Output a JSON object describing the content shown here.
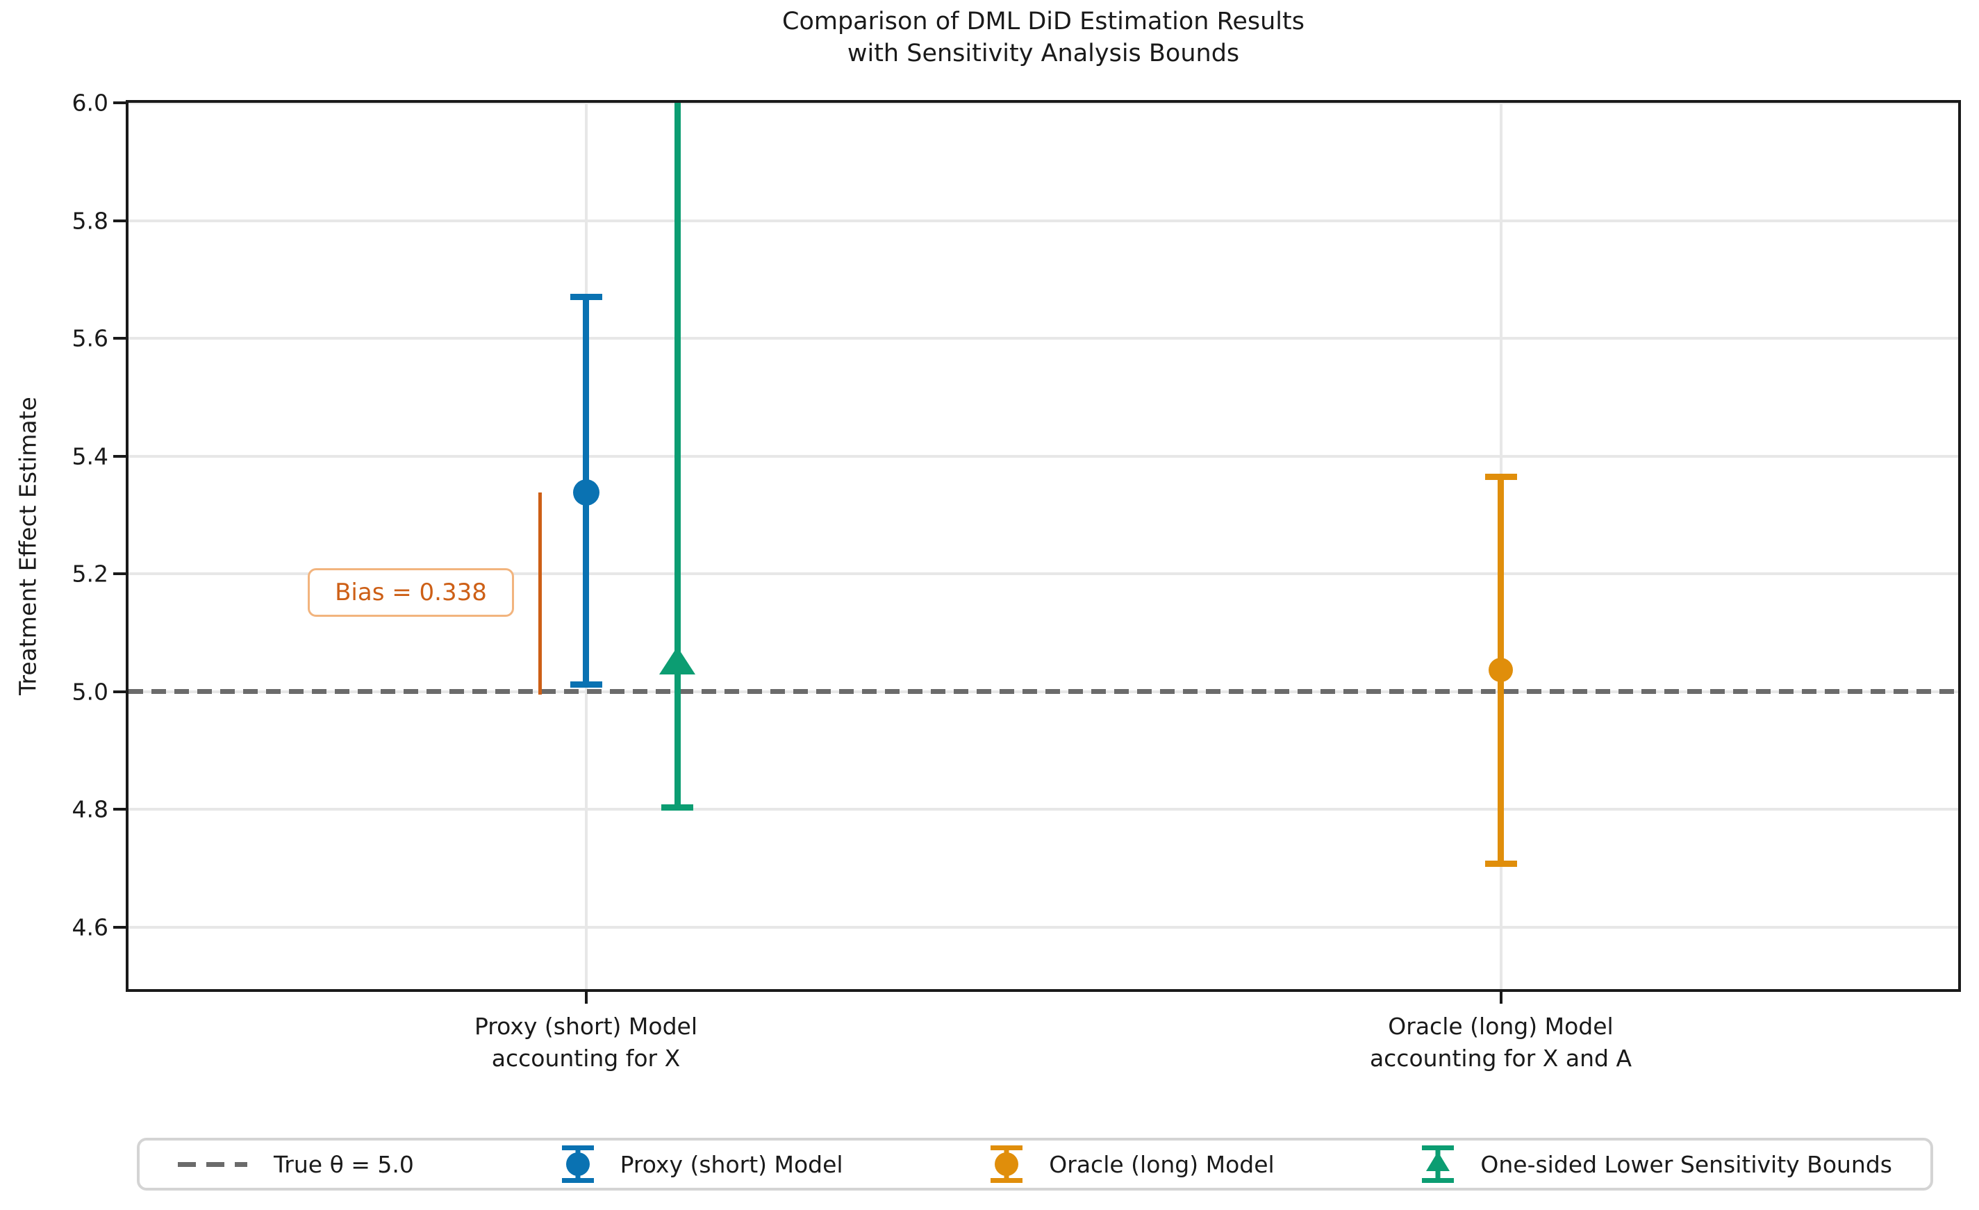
{
  "figure": {
    "title_line1": "Comparison of DML DiD Estimation Results",
    "title_line2": "with Sensitivity Analysis Bounds",
    "ylabel": "Treatment Effect Estimate"
  },
  "chart_data": {
    "type": "scatter",
    "subtype": "errorbar",
    "title": "Comparison of DML DiD Estimation Results\nwith Sensitivity Analysis Bounds",
    "ylabel": "Treatment Effect Estimate",
    "xlabel": "",
    "ylim": [
      4.495,
      6.0
    ],
    "xlim": [
      -0.5,
      1.5
    ],
    "yticks": [
      4.6,
      4.8,
      5.0,
      5.2,
      5.4,
      5.6,
      5.8,
      6.0
    ],
    "grid": true,
    "categories": [
      {
        "x": 0,
        "label_line1": "Proxy (short) Model",
        "label_line2": "accounting for X"
      },
      {
        "x": 1,
        "label_line1": "Oracle (long) Model",
        "label_line2": "accounting for X and A"
      }
    ],
    "reference_line": {
      "y": 5.0,
      "label": "True θ = 5.0",
      "color": "#6b6b6b",
      "style": "dashed"
    },
    "series": [
      {
        "key": "proxy",
        "name": "Proxy (short) Model",
        "x": 0,
        "estimate": 5.338,
        "ci_lower": 5.012,
        "ci_upper": 5.67,
        "marker": "circle",
        "marker_size": 38,
        "color": "#0a72b2"
      },
      {
        "key": "oracle",
        "name": "Oracle (long) Model",
        "x": 1,
        "estimate": 5.037,
        "ci_lower": 4.708,
        "ci_upper": 5.365,
        "marker": "circle",
        "marker_size": 35,
        "color": "#e08e0b"
      },
      {
        "key": "sensitivity",
        "name": "One-sided Lower Sensitivity Bounds",
        "x": 0.1,
        "estimate": 5.053,
        "ci_lower": 4.803,
        "ci_upper": 6.0,
        "upper_clipped": true,
        "marker": "triangle-up",
        "marker_size": 52,
        "color": "#0c9d72"
      }
    ],
    "annotation": {
      "text": "Bias = 0.338",
      "bias_value": 0.338,
      "line_x": -0.05,
      "line_y_from": 5.0,
      "line_y_to": 5.338,
      "text_color": "#cd5f16",
      "box_border_color": "#f2b47e"
    },
    "legend": {
      "position": "bottom",
      "items": [
        {
          "type": "dashed-line",
          "label": "True θ = 5.0",
          "color": "#6b6b6b"
        },
        {
          "type": "errorbar-circle",
          "label": "Proxy (short) Model",
          "color": "#0a72b2"
        },
        {
          "type": "errorbar-circle",
          "label": "Oracle (long) Model",
          "color": "#e08e0b"
        },
        {
          "type": "errorbar-triangle",
          "label": "One-sided Lower Sensitivity Bounds",
          "color": "#0c9d72"
        }
      ]
    }
  }
}
